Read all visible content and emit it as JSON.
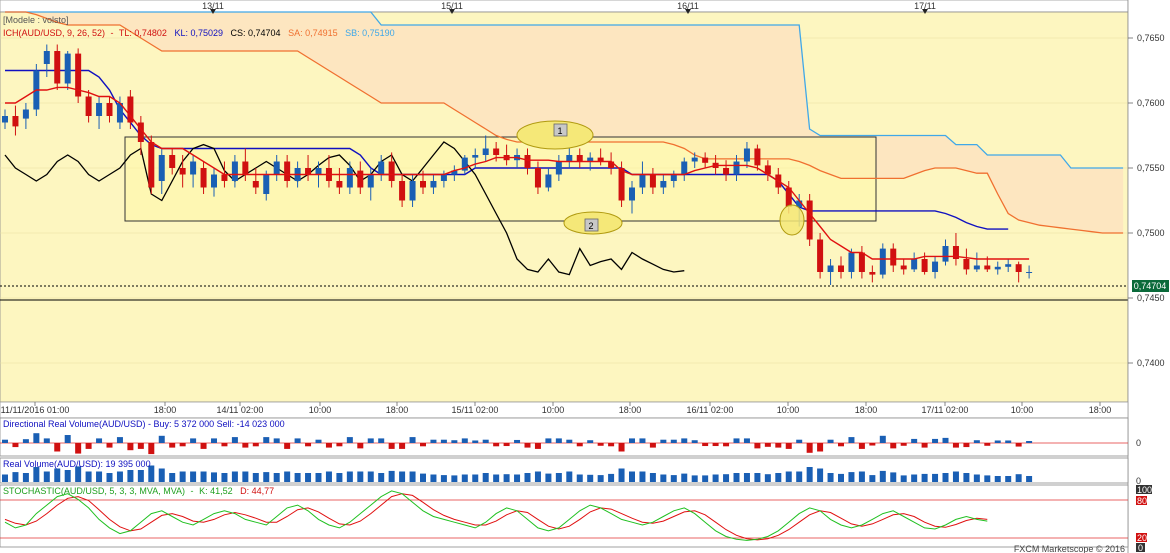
{
  "top_dates": [
    {
      "label": "13/11",
      "x": 213
    },
    {
      "label": "15/11",
      "x": 452
    },
    {
      "label": "16/11",
      "x": 688
    },
    {
      "label": "17/11",
      "x": 925
    }
  ],
  "main_panel": {
    "preset_label": "[Modele : volsto]",
    "indicator_name": "ICH(AUD/USD, 9, 26, 52)",
    "tl_text": "TL: 0,74802",
    "kl_text": "KL: 0,75029",
    "cs_text": "CS: 0,74704",
    "sa_text": "SA: 0,74915",
    "sb_text": "SB: 0,75190",
    "current_price": "0,74704",
    "box_label_1": "1",
    "box_label_2": "2"
  },
  "price_axis": {
    "ticks": [
      {
        "label": "0,7650",
        "value": 0.765
      },
      {
        "label": "0,7600",
        "value": 0.76
      },
      {
        "label": "0,7550",
        "value": 0.755
      },
      {
        "label": "0,7500",
        "value": 0.75
      },
      {
        "label": "0,7450",
        "value": 0.745
      },
      {
        "label": "0,7400",
        "value": 0.74
      }
    ]
  },
  "time_axis": {
    "ticks": [
      {
        "label": "11/11/2016 01:00",
        "x": 35
      },
      {
        "label": "18:00",
        "x": 165
      },
      {
        "label": "14/11 02:00",
        "x": 240
      },
      {
        "label": "10:00",
        "x": 320
      },
      {
        "label": "18:00",
        "x": 397
      },
      {
        "label": "15/11 02:00",
        "x": 475
      },
      {
        "label": "10:00",
        "x": 553
      },
      {
        "label": "18:00",
        "x": 630
      },
      {
        "label": "16/11 02:00",
        "x": 710
      },
      {
        "label": "10:00",
        "x": 788
      },
      {
        "label": "18:00",
        "x": 866
      },
      {
        "label": "17/11 02:00",
        "x": 945
      },
      {
        "label": "10:00",
        "x": 1022
      },
      {
        "label": "18:00",
        "x": 1100
      }
    ]
  },
  "drv_panel": {
    "label": "Directional Real Volume(AUD/USD) -  Buy: 5 372 000  Sell: -14 023 000",
    "zero_label": "0"
  },
  "rv_panel": {
    "label": "Real Volume(AUD/USD): 19 395 000",
    "zero_label": "0"
  },
  "stoch_panel": {
    "name": "STOCHASTIC(AUD/USD, 5, 3, 3, MVA, MVA)",
    "k_text": "K: 41,52",
    "d_text": "D: 44,77",
    "level_100": "100",
    "level_80": "80",
    "level_20": "20",
    "level_0": "0"
  },
  "footer": {
    "credit": "FXCM Marketscope © 2016"
  },
  "colors": {
    "up": "#1a5fb4",
    "down": "#d01010",
    "tenkan": "#e01010",
    "kijun": "#1010c0",
    "chikou": "#000000",
    "spanA": "#f07030",
    "spanB": "#40a8e8",
    "cloud": "#fde6c0",
    "panel_bg": "#fdf6c0"
  },
  "chart_data": {
    "type": "candlestick",
    "ylim": [
      0.737,
      0.767
    ],
    "candles": [
      [
        0.7585,
        0.7595,
        0.758,
        0.759
      ],
      [
        0.759,
        0.7598,
        0.7575,
        0.7582
      ],
      [
        0.7588,
        0.76,
        0.758,
        0.7595
      ],
      [
        0.7595,
        0.763,
        0.759,
        0.7625
      ],
      [
        0.763,
        0.7645,
        0.762,
        0.764
      ],
      [
        0.764,
        0.7645,
        0.761,
        0.7615
      ],
      [
        0.7615,
        0.764,
        0.761,
        0.7638
      ],
      [
        0.7638,
        0.7642,
        0.76,
        0.7605
      ],
      [
        0.7605,
        0.761,
        0.7585,
        0.759
      ],
      [
        0.759,
        0.7605,
        0.758,
        0.76
      ],
      [
        0.76,
        0.7605,
        0.7585,
        0.759
      ],
      [
        0.7585,
        0.7605,
        0.758,
        0.76
      ],
      [
        0.7605,
        0.761,
        0.758,
        0.7585
      ],
      [
        0.7585,
        0.759,
        0.756,
        0.757
      ],
      [
        0.757,
        0.7575,
        0.753,
        0.7535
      ],
      [
        0.754,
        0.7565,
        0.753,
        0.756
      ],
      [
        0.756,
        0.7565,
        0.7545,
        0.755
      ],
      [
        0.755,
        0.756,
        0.7535,
        0.7545
      ],
      [
        0.7545,
        0.756,
        0.7535,
        0.7555
      ],
      [
        0.755,
        0.7555,
        0.753,
        0.7535
      ],
      [
        0.7535,
        0.755,
        0.7528,
        0.7545
      ],
      [
        0.7545,
        0.7555,
        0.7535,
        0.754
      ],
      [
        0.754,
        0.756,
        0.7535,
        0.7555
      ],
      [
        0.7555,
        0.7565,
        0.754,
        0.7545
      ],
      [
        0.754,
        0.755,
        0.753,
        0.7535
      ],
      [
        0.753,
        0.7548,
        0.7525,
        0.7545
      ],
      [
        0.7545,
        0.756,
        0.754,
        0.7555
      ],
      [
        0.7555,
        0.756,
        0.7535,
        0.754
      ],
      [
        0.754,
        0.7555,
        0.7535,
        0.755
      ],
      [
        0.755,
        0.756,
        0.754,
        0.7545
      ],
      [
        0.7545,
        0.7555,
        0.7535,
        0.755
      ],
      [
        0.755,
        0.756,
        0.7535,
        0.754
      ],
      [
        0.754,
        0.755,
        0.753,
        0.7535
      ],
      [
        0.7535,
        0.7555,
        0.753,
        0.755
      ],
      [
        0.7548,
        0.7555,
        0.753,
        0.7535
      ],
      [
        0.7535,
        0.755,
        0.7525,
        0.7545
      ],
      [
        0.7545,
        0.756,
        0.754,
        0.7555
      ],
      [
        0.7555,
        0.7562,
        0.7535,
        0.754
      ],
      [
        0.754,
        0.7545,
        0.752,
        0.7525
      ],
      [
        0.7525,
        0.7545,
        0.752,
        0.754
      ],
      [
        0.754,
        0.7548,
        0.753,
        0.7535
      ],
      [
        0.7535,
        0.7545,
        0.753,
        0.754
      ],
      [
        0.754,
        0.7548,
        0.7535,
        0.7545
      ],
      [
        0.7545,
        0.7552,
        0.754,
        0.7548
      ],
      [
        0.7548,
        0.756,
        0.7545,
        0.7558
      ],
      [
        0.7558,
        0.7565,
        0.755,
        0.756
      ],
      [
        0.756,
        0.7575,
        0.7555,
        0.7565
      ],
      [
        0.7565,
        0.757,
        0.7555,
        0.756
      ],
      [
        0.756,
        0.7568,
        0.7552,
        0.7556
      ],
      [
        0.7556,
        0.7565,
        0.755,
        0.756
      ],
      [
        0.756,
        0.7565,
        0.7545,
        0.755
      ],
      [
        0.755,
        0.7555,
        0.753,
        0.7535
      ],
      [
        0.7535,
        0.755,
        0.7532,
        0.7545
      ],
      [
        0.7545,
        0.756,
        0.754,
        0.7555
      ],
      [
        0.7555,
        0.7575,
        0.755,
        0.756
      ],
      [
        0.756,
        0.7565,
        0.755,
        0.7555
      ],
      [
        0.7555,
        0.7562,
        0.7548,
        0.7558
      ],
      [
        0.7558,
        0.7565,
        0.7552,
        0.7555
      ],
      [
        0.7555,
        0.7562,
        0.7545,
        0.755
      ],
      [
        0.755,
        0.7555,
        0.752,
        0.7525
      ],
      [
        0.7525,
        0.754,
        0.7515,
        0.7535
      ],
      [
        0.7535,
        0.7555,
        0.753,
        0.7545
      ],
      [
        0.7545,
        0.755,
        0.753,
        0.7535
      ],
      [
        0.7535,
        0.7545,
        0.753,
        0.754
      ],
      [
        0.754,
        0.7548,
        0.7535,
        0.7545
      ],
      [
        0.7545,
        0.7558,
        0.754,
        0.7555
      ],
      [
        0.7555,
        0.7562,
        0.755,
        0.7558
      ],
      [
        0.7558,
        0.7562,
        0.755,
        0.7554
      ],
      [
        0.7554,
        0.756,
        0.7545,
        0.755
      ],
      [
        0.755,
        0.7556,
        0.754,
        0.7545
      ],
      [
        0.7545,
        0.756,
        0.754,
        0.7555
      ],
      [
        0.7555,
        0.757,
        0.755,
        0.7565
      ],
      [
        0.7565,
        0.7568,
        0.7548,
        0.7552
      ],
      [
        0.7552,
        0.7556,
        0.754,
        0.7545
      ],
      [
        0.7545,
        0.755,
        0.753,
        0.7535
      ],
      [
        0.7535,
        0.754,
        0.7515,
        0.752
      ],
      [
        0.752,
        0.753,
        0.7505,
        0.7525
      ],
      [
        0.7525,
        0.753,
        0.749,
        0.7495
      ],
      [
        0.7495,
        0.75,
        0.7465,
        0.747
      ],
      [
        0.747,
        0.748,
        0.746,
        0.7475
      ],
      [
        0.7475,
        0.7482,
        0.7465,
        0.747
      ],
      [
        0.747,
        0.7488,
        0.7465,
        0.7485
      ],
      [
        0.7485,
        0.749,
        0.7465,
        0.747
      ],
      [
        0.747,
        0.7475,
        0.7462,
        0.7468
      ],
      [
        0.7468,
        0.7492,
        0.7465,
        0.7488
      ],
      [
        0.7488,
        0.7492,
        0.747,
        0.7475
      ],
      [
        0.7475,
        0.748,
        0.7468,
        0.7472
      ],
      [
        0.7472,
        0.7485,
        0.747,
        0.748
      ],
      [
        0.748,
        0.7485,
        0.7468,
        0.747
      ],
      [
        0.747,
        0.7482,
        0.7465,
        0.7478
      ],
      [
        0.7478,
        0.7495,
        0.7475,
        0.749
      ],
      [
        0.749,
        0.75,
        0.7475,
        0.748
      ],
      [
        0.748,
        0.7488,
        0.7468,
        0.7472
      ],
      [
        0.7472,
        0.7485,
        0.747,
        0.7475
      ],
      [
        0.7475,
        0.7482,
        0.747,
        0.7472
      ],
      [
        0.7472,
        0.7478,
        0.7468,
        0.7474
      ],
      [
        0.7474,
        0.748,
        0.747,
        0.7476
      ],
      [
        0.7476,
        0.7478,
        0.7462,
        0.747
      ],
      [
        0.747,
        0.7475,
        0.7465,
        0.747
      ]
    ],
    "tenkan": [
      0.76,
      0.76,
      0.7605,
      0.761,
      0.761,
      0.7612,
      0.7612,
      0.761,
      0.7608,
      0.7605,
      0.7605,
      0.76,
      0.759,
      0.758,
      0.757,
      0.7565,
      0.7565,
      0.7565,
      0.756,
      0.7555,
      0.755,
      0.7545,
      0.7545,
      0.7545,
      0.7545,
      0.7545,
      0.7545,
      0.7545,
      0.7545,
      0.7545,
      0.7545,
      0.7545,
      0.7545,
      0.7545,
      0.7545,
      0.7545,
      0.7545,
      0.7545,
      0.7545,
      0.7545,
      0.7545,
      0.7545,
      0.7545,
      0.7548,
      0.755,
      0.7553,
      0.7555,
      0.7558,
      0.7558,
      0.7558,
      0.7556,
      0.7556,
      0.7556,
      0.7555,
      0.7555,
      0.7555,
      0.7555,
      0.7555,
      0.7555,
      0.7548,
      0.7545,
      0.7545,
      0.7545,
      0.7545,
      0.7545,
      0.7545,
      0.7548,
      0.755,
      0.7552,
      0.7552,
      0.7552,
      0.7552,
      0.755,
      0.7545,
      0.754,
      0.7535,
      0.7525,
      0.7515,
      0.7505,
      0.7495,
      0.749,
      0.7485,
      0.7485,
      0.748,
      0.748,
      0.748,
      0.748,
      0.748,
      0.7482,
      0.7482,
      0.7482,
      0.7482,
      0.7481,
      0.748,
      0.748,
      0.748,
      0.748,
      0.748,
      0.748
    ],
    "kijun": [
      0.7625,
      0.7625,
      0.7625,
      0.7625,
      0.7625,
      0.7625,
      0.7625,
      0.7625,
      0.7625,
      0.762,
      0.761,
      0.7595,
      0.7585,
      0.7575,
      0.7568,
      0.7565,
      0.7565,
      0.7565,
      0.7565,
      0.7565,
      0.7565,
      0.7565,
      0.7565,
      0.7565,
      0.7565,
      0.7565,
      0.7565,
      0.7565,
      0.7565,
      0.7565,
      0.7565,
      0.7565,
      0.7565,
      0.7565,
      0.756,
      0.755,
      0.7545,
      0.7545,
      0.7545,
      0.7545,
      0.7545,
      0.7545,
      0.7545,
      0.7545,
      0.7545,
      0.755,
      0.755,
      0.755,
      0.755,
      0.755,
      0.755,
      0.755,
      0.755,
      0.755,
      0.755,
      0.755,
      0.755,
      0.755,
      0.755,
      0.755,
      0.7545,
      0.7545,
      0.7545,
      0.7545,
      0.7545,
      0.7545,
      0.7545,
      0.7545,
      0.7545,
      0.7545,
      0.7545,
      0.7545,
      0.7545,
      0.7545,
      0.754,
      0.753,
      0.752,
      0.7517,
      0.7517,
      0.7517,
      0.7517,
      0.7517,
      0.7517,
      0.7517,
      0.7517,
      0.7517,
      0.7517,
      0.7517,
      0.7517,
      0.7517,
      0.7515,
      0.7512,
      0.7508,
      0.7505,
      0.7503,
      0.7503,
      0.7503
    ],
    "chikou": [
      0.756,
      0.755,
      0.7545,
      0.754,
      0.7545,
      0.7555,
      0.756,
      0.7555,
      0.7545,
      0.754,
      0.7545,
      0.755,
      0.756,
      0.7565,
      0.753,
      0.7525,
      0.754,
      0.7555,
      0.7565,
      0.7568,
      0.7565,
      0.7548,
      0.754,
      0.7545,
      0.755,
      0.7555,
      0.755,
      0.7545,
      0.754,
      0.7545,
      0.7552,
      0.7558,
      0.756,
      0.7552,
      0.754,
      0.7545,
      0.7555,
      0.756,
      0.7545,
      0.754,
      0.755,
      0.756,
      0.757,
      0.7565,
      0.7555,
      0.7545,
      0.753,
      0.7515,
      0.75,
      0.748,
      0.7472,
      0.747,
      0.748,
      0.747,
      0.7468,
      0.7488,
      0.7475,
      0.7478,
      0.748,
      0.7472,
      0.7485,
      0.748,
      0.7476,
      0.7472,
      0.747,
      0.7471
    ],
    "span_a": [
      0.768,
      0.7675,
      0.767,
      0.7668,
      0.7665,
      0.7662,
      0.766,
      0.766,
      0.766,
      0.766,
      0.766,
      0.766,
      0.7655,
      0.765,
      0.7645,
      0.764,
      0.764,
      0.764,
      0.764,
      0.764,
      0.764,
      0.764,
      0.764,
      0.764,
      0.764,
      0.764,
      0.764,
      0.764,
      0.764,
      0.7635,
      0.763,
      0.7625,
      0.762,
      0.7615,
      0.761,
      0.7605,
      0.76,
      0.76,
      0.76,
      0.76,
      0.76,
      0.76,
      0.76,
      0.7595,
      0.759,
      0.7585,
      0.758,
      0.7575,
      0.7572,
      0.757,
      0.757,
      0.757,
      0.757,
      0.757,
      0.757,
      0.757,
      0.757,
      0.757,
      0.757,
      0.757,
      0.757,
      0.757,
      0.757,
      0.757,
      0.7568,
      0.7565,
      0.756,
      0.7557,
      0.7557,
      0.7557,
      0.7557,
      0.7557,
      0.7557,
      0.7557,
      0.7557,
      0.7557,
      0.7555,
      0.7552,
      0.7548,
      0.7545,
      0.7542,
      0.7542,
      0.7542,
      0.7542,
      0.7542,
      0.7542,
      0.7542,
      0.7545,
      0.7548,
      0.755,
      0.755,
      0.755,
      0.7548,
      0.7546,
      0.7546,
      0.753,
      0.7515,
      0.751,
      0.7508,
      0.7506,
      0.7505,
      0.7504,
      0.7503,
      0.7502,
      0.7501,
      0.75,
      0.75,
      0.75,
      0.7499,
      0.7499,
      0.7498,
      0.7498,
      0.7497,
      0.7496,
      0.7495
    ],
    "span_b": [
      0.77,
      0.77,
      0.77,
      0.77,
      0.77,
      0.77,
      0.77,
      0.77,
      0.77,
      0.77,
      0.77,
      0.77,
      0.77,
      0.77,
      0.77,
      0.77,
      0.77,
      0.77,
      0.77,
      0.77,
      0.77,
      0.77,
      0.77,
      0.77,
      0.77,
      0.77,
      0.77,
      0.77,
      0.77,
      0.77,
      0.77,
      0.77,
      0.77,
      0.77,
      0.77,
      0.77,
      0.766,
      0.766,
      0.766,
      0.766,
      0.766,
      0.766,
      0.766,
      0.766,
      0.766,
      0.766,
      0.766,
      0.766,
      0.766,
      0.766,
      0.766,
      0.766,
      0.766,
      0.766,
      0.766,
      0.766,
      0.766,
      0.766,
      0.766,
      0.766,
      0.766,
      0.766,
      0.766,
      0.766,
      0.766,
      0.766,
      0.766,
      0.766,
      0.766,
      0.766,
      0.766,
      0.766,
      0.766,
      0.766,
      0.766,
      0.766,
      0.766,
      0.758,
      0.7575,
      0.7575,
      0.7575,
      0.7575,
      0.7575,
      0.7575,
      0.7575,
      0.7575,
      0.7575,
      0.7575,
      0.7575,
      0.7575,
      0.7575,
      0.7568,
      0.7568,
      0.7568,
      0.756,
      0.756,
      0.756,
      0.756,
      0.756,
      0.756,
      0.756,
      0.756,
      0.755,
      0.755,
      0.755,
      0.755,
      0.755,
      0.755,
      0.755,
      0.755,
      0.755,
      0.755,
      0.755,
      0.755,
      0.755,
      0.755,
      0.755,
      0.755,
      0.755,
      0.755,
      0.7548,
      0.7546,
      0.7546,
      0.7546,
      0.754,
      0.753,
      0.7525,
      0.7522,
      0.752,
      0.752,
      0.752,
      0.752,
      0.752
    ],
    "stoch_k": [
      40,
      30,
      35,
      55,
      70,
      85,
      90,
      80,
      65,
      45,
      30,
      20,
      25,
      40,
      55,
      60,
      50,
      40,
      35,
      45,
      55,
      60,
      55,
      45,
      40,
      35,
      50,
      65,
      70,
      60,
      45,
      35,
      30,
      40,
      55,
      70,
      85,
      95,
      90,
      75,
      60,
      50,
      45,
      40,
      35,
      30,
      40,
      55,
      65,
      60,
      45,
      30,
      25,
      30,
      45,
      60,
      70,
      65,
      55,
      45,
      40,
      35,
      40,
      50,
      60,
      65,
      55,
      40,
      25,
      15,
      10,
      8,
      10,
      15,
      25,
      40,
      55,
      65,
      60,
      45,
      35,
      30,
      35,
      45,
      55,
      60,
      50,
      40,
      30,
      28,
      35,
      45,
      50,
      45,
      42
    ],
    "stoch_d": [
      45,
      38,
      35,
      42,
      55,
      70,
      82,
      85,
      78,
      62,
      45,
      32,
      25,
      28,
      40,
      52,
      55,
      50,
      42,
      40,
      45,
      53,
      57,
      53,
      47,
      40,
      40,
      50,
      62,
      65,
      58,
      47,
      37,
      35,
      42,
      55,
      70,
      85,
      90,
      87,
      75,
      62,
      52,
      45,
      40,
      35,
      35,
      42,
      53,
      60,
      57,
      45,
      33,
      28,
      33,
      45,
      58,
      65,
      63,
      55,
      47,
      40,
      38,
      42,
      50,
      58,
      60,
      53,
      40,
      27,
      17,
      11,
      9,
      11,
      17,
      27,
      40,
      53,
      60,
      57,
      47,
      37,
      33,
      37,
      45,
      53,
      55,
      50,
      40,
      33,
      31,
      36,
      43,
      47,
      45
    ]
  }
}
